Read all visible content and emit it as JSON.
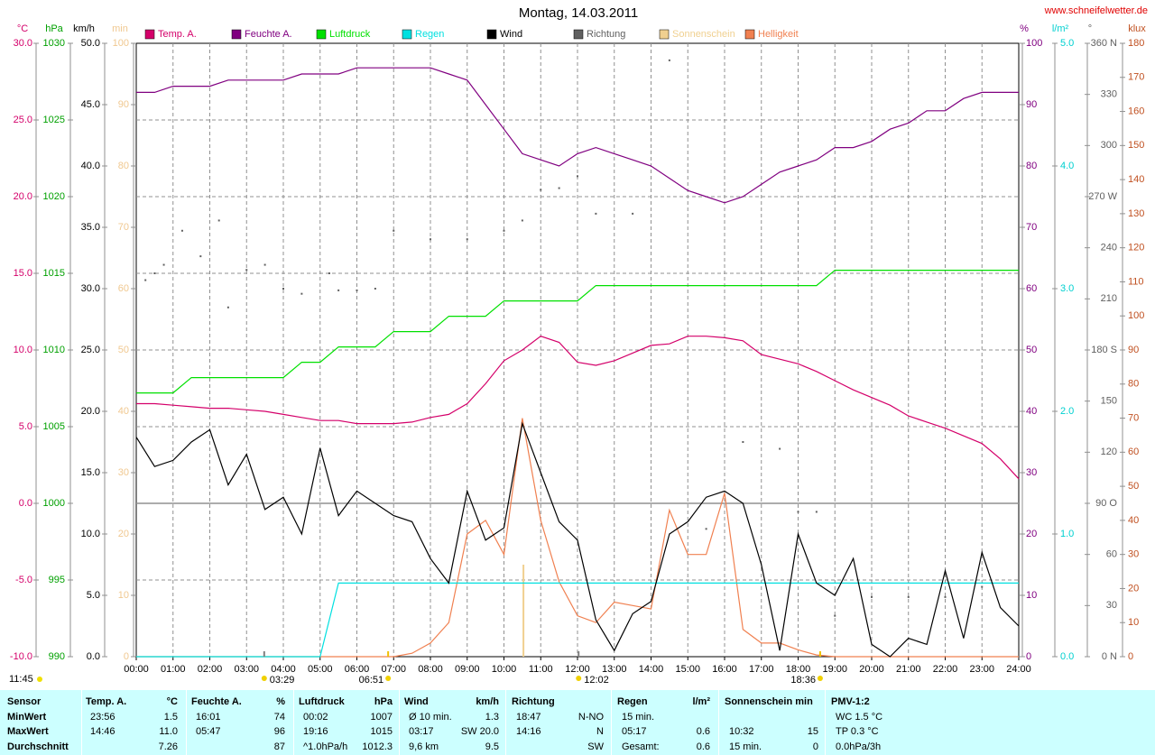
{
  "site": "www.schneifelwetter.de",
  "footer_time": "11:45",
  "chart_data": {
    "type": "line",
    "title": "Montag, 14.03.2011",
    "xlim": [
      0,
      24
    ],
    "xticks": [
      {
        "value": 0,
        "label": "00:00"
      },
      {
        "value": 1,
        "label": "01:00"
      },
      {
        "value": 2,
        "label": "02:00"
      },
      {
        "value": 3,
        "label": "03:00"
      },
      {
        "value": 4,
        "label": "04:00"
      },
      {
        "value": 5,
        "label": "05:00"
      },
      {
        "value": 6,
        "label": "06:00"
      },
      {
        "value": 7,
        "label": "07:00"
      },
      {
        "value": 8,
        "label": "08:00"
      },
      {
        "value": 9,
        "label": "09:00"
      },
      {
        "value": 10,
        "label": "10:00"
      },
      {
        "value": 11,
        "label": "11:00"
      },
      {
        "value": 12,
        "label": "12:00"
      },
      {
        "value": 13,
        "label": "13:00"
      },
      {
        "value": 14,
        "label": "14:00"
      },
      {
        "value": 15,
        "label": "15:00"
      },
      {
        "value": 16,
        "label": "16:00"
      },
      {
        "value": 17,
        "label": "17:00"
      },
      {
        "value": 18,
        "label": "18:00"
      },
      {
        "value": 19,
        "label": "19:00"
      },
      {
        "value": 20,
        "label": "20:00"
      },
      {
        "value": 21,
        "label": "21:00"
      },
      {
        "value": 22,
        "label": "22:00"
      },
      {
        "value": 23,
        "label": "23:00"
      },
      {
        "value": 24,
        "label": "24:00"
      }
    ],
    "grid": true,
    "axes": [
      {
        "unit": "°C",
        "color": "#d4006a",
        "lim": [
          -10,
          30
        ],
        "ticks": [
          {
            "value": -10,
            "label": "-10.0"
          },
          {
            "value": -5,
            "label": "-5.0"
          },
          {
            "value": 0,
            "label": "0.0"
          },
          {
            "value": 5,
            "label": "5.0"
          },
          {
            "value": 10,
            "label": "10.0"
          },
          {
            "value": 15,
            "label": "15.0"
          },
          {
            "value": 20,
            "label": "20.0"
          },
          {
            "value": 25,
            "label": "25.0"
          },
          {
            "value": 30,
            "label": "30.0"
          }
        ]
      },
      {
        "unit": "hPa",
        "color": "#00a000",
        "lim": [
          990,
          1030
        ],
        "ticks": [
          990,
          995,
          1000,
          1005,
          1010,
          1015,
          1020,
          1025,
          1030
        ]
      },
      {
        "unit": "km/h",
        "color": "#000000",
        "lim": [
          0,
          50
        ],
        "ticks": [
          {
            "value": 0,
            "label": "0.0"
          },
          {
            "value": 5,
            "label": "5.0"
          },
          {
            "value": 10,
            "label": "10.0"
          },
          {
            "value": 15,
            "label": "15.0"
          },
          {
            "value": 20,
            "label": "20.0"
          },
          {
            "value": 25,
            "label": "25.0"
          },
          {
            "value": 30,
            "label": "30.0"
          },
          {
            "value": 35,
            "label": "35.0"
          },
          {
            "value": 40,
            "label": "40.0"
          },
          {
            "value": 45,
            "label": "45.0"
          },
          {
            "value": 50,
            "label": "50.0"
          }
        ]
      },
      {
        "unit": "min",
        "color": "#f0c890",
        "lim": [
          0,
          100
        ],
        "ticks": [
          0,
          10,
          20,
          30,
          40,
          50,
          60,
          70,
          80,
          90,
          100
        ]
      },
      {
        "unit": "%",
        "color": "#800080",
        "lim": [
          0,
          100
        ],
        "ticks": [
          0,
          10,
          20,
          30,
          40,
          50,
          60,
          70,
          80,
          90,
          100
        ]
      },
      {
        "unit": "l/m²",
        "color": "#00d0d0",
        "lim": [
          0,
          5
        ],
        "ticks": [
          {
            "value": 0,
            "label": "0.0"
          },
          {
            "value": 1,
            "label": "1.0"
          },
          {
            "value": 2,
            "label": "2.0"
          },
          {
            "value": 3,
            "label": "3.0"
          },
          {
            "value": 4,
            "label": "4.0"
          },
          {
            "value": 5,
            "label": "5.0"
          }
        ]
      },
      {
        "unit": "°",
        "color": "#606060",
        "lim": [
          0,
          360
        ],
        "ticks": [
          {
            "value": 0,
            "label": "0 N"
          },
          30,
          60,
          {
            "value": 90,
            "label": "90 O"
          },
          120,
          150,
          {
            "value": 180,
            "label": "180 S"
          },
          210,
          240,
          {
            "value": 270,
            "label": "270 W"
          },
          300,
          330,
          {
            "value": 360,
            "label": "360 N"
          }
        ]
      },
      {
        "unit": "klux",
        "color": "#c05020",
        "lim": [
          0,
          180
        ],
        "ticks": [
          0,
          10,
          20,
          30,
          40,
          50,
          60,
          70,
          80,
          90,
          100,
          110,
          120,
          130,
          140,
          150,
          160,
          170,
          180
        ]
      }
    ],
    "x": [
      0,
      0.5,
      1,
      1.5,
      2,
      2.5,
      3,
      3.5,
      4,
      4.5,
      5,
      5.5,
      6,
      6.5,
      7,
      7.5,
      8,
      8.5,
      9,
      9.5,
      10,
      10.5,
      11,
      11.5,
      12,
      12.5,
      13,
      13.5,
      14,
      14.5,
      15,
      15.5,
      16,
      16.5,
      17,
      17.5,
      18,
      18.5,
      19,
      19.5,
      20,
      20.5,
      21,
      21.5,
      22,
      22.5,
      23,
      23.5,
      24
    ],
    "series": [
      {
        "name": "Temp. A.",
        "color": "#d4006a",
        "axis": 0,
        "mark": "line",
        "values": [
          6.5,
          6.5,
          6.4,
          6.3,
          6.2,
          6.2,
          6.1,
          6.0,
          5.8,
          5.6,
          5.4,
          5.4,
          5.2,
          5.2,
          5.2,
          5.3,
          5.6,
          5.8,
          6.5,
          7.8,
          9.3,
          10.0,
          10.9,
          10.5,
          9.2,
          9.0,
          9.3,
          9.8,
          10.3,
          10.4,
          10.9,
          10.9,
          10.8,
          10.6,
          9.7,
          9.4,
          9.1,
          8.6,
          8.0,
          7.4,
          6.9,
          6.4,
          5.7,
          5.3,
          4.9,
          4.4,
          3.9,
          2.9,
          1.6
        ]
      },
      {
        "name": "Feuchte A.",
        "color": "#800080",
        "axis": 4,
        "mark": "line",
        "values": [
          92,
          92,
          93,
          93,
          93,
          94,
          94,
          94,
          94,
          95,
          95,
          95,
          96,
          96,
          96,
          96,
          96,
          95,
          94,
          90,
          86,
          82,
          81,
          80,
          82,
          83,
          82,
          81,
          80,
          78,
          76,
          75,
          74,
          75,
          77,
          79,
          80,
          81,
          83,
          83,
          84,
          86,
          87,
          89,
          89,
          91,
          92,
          92,
          92
        ]
      },
      {
        "name": "Luftdruck",
        "color": "#00e000",
        "axis": 1,
        "mark": "line",
        "values": [
          1007.2,
          1007.2,
          1007.2,
          1008.2,
          1008.2,
          1008.2,
          1008.2,
          1008.2,
          1008.2,
          1009.2,
          1009.2,
          1010.2,
          1010.2,
          1010.2,
          1011.2,
          1011.2,
          1011.2,
          1012.2,
          1012.2,
          1012.2,
          1013.2,
          1013.2,
          1013.2,
          1013.2,
          1013.2,
          1014.2,
          1014.2,
          1014.2,
          1014.2,
          1014.2,
          1014.2,
          1014.2,
          1014.2,
          1014.2,
          1014.2,
          1014.2,
          1014.2,
          1014.2,
          1015.2,
          1015.2,
          1015.2,
          1015.2,
          1015.2,
          1015.2,
          1015.2,
          1015.2,
          1015.2,
          1015.2,
          1015.2
        ]
      },
      {
        "name": "Regen",
        "color": "#00e0e0",
        "axis": 5,
        "mark": "line",
        "values": [
          0,
          0,
          0,
          0,
          0,
          0,
          0,
          0,
          0,
          0,
          0,
          0.6,
          0.6,
          0.6,
          0.6,
          0.6,
          0.6,
          0.6,
          0.6,
          0.6,
          0.6,
          0.6,
          0.6,
          0.6,
          0.6,
          0.6,
          0.6,
          0.6,
          0.6,
          0.6,
          0.6,
          0.6,
          0.6,
          0.6,
          0.6,
          0.6,
          0.6,
          0.6,
          0.6,
          0.6,
          0.6,
          0.6,
          0.6,
          0.6,
          0.6,
          0.6,
          0.6,
          0.6,
          0.6
        ]
      },
      {
        "name": "Wind",
        "color": "#000000",
        "axis": 2,
        "mark": "line",
        "values": [
          17.9,
          15.5,
          16.0,
          17.5,
          18.5,
          14.0,
          16.5,
          12.0,
          13.0,
          10.0,
          17.0,
          11.5,
          13.5,
          12.5,
          11.5,
          11.0,
          8.0,
          6.0,
          13.5,
          9.5,
          10.5,
          19.0,
          15.0,
          11.0,
          9.5,
          3.0,
          0.5,
          3.5,
          4.5,
          10.0,
          11.0,
          13.0,
          13.5,
          12.5,
          7.5,
          0.5,
          10.0,
          6.0,
          5.0,
          8.0,
          1.0,
          0.0,
          1.5,
          1.0,
          7.0,
          1.5,
          8.5,
          4.0,
          2.5
        ]
      },
      {
        "name": "Richtung",
        "color": "#606060",
        "axis": 6,
        "mark": "dot",
        "x": [
          0.25,
          0.5,
          0.75,
          1.25,
          1.75,
          2.25,
          2.5,
          3,
          3.5,
          4,
          4.5,
          5.25,
          5.5,
          6,
          6.5,
          7,
          8,
          9,
          10,
          10.5,
          11,
          11.5,
          12,
          12.5,
          13.5,
          14.5,
          15.5,
          16.5,
          17.5,
          18,
          18.5,
          19,
          20,
          21,
          22,
          23
        ],
        "values": [
          221,
          225,
          230,
          250,
          235,
          256,
          205,
          227,
          230,
          216,
          213,
          225,
          215,
          215,
          216,
          250,
          245,
          245,
          250,
          256,
          274,
          275,
          282,
          260,
          260,
          350,
          75,
          126,
          122,
          85,
          85,
          24,
          35,
          35,
          35,
          41
        ]
      },
      {
        "name": "Sonnenschein",
        "color": "#f0d090",
        "axis": 3,
        "mark": "bar",
        "x": [
          10.53
        ],
        "values": [
          15
        ]
      },
      {
        "name": "Helligkeit",
        "color": "#f08050",
        "axis": 7,
        "mark": "line",
        "values": [
          0,
          0,
          0,
          0,
          0,
          0,
          0,
          0,
          0,
          0,
          0,
          0,
          0,
          0,
          0,
          1,
          4,
          10,
          36,
          40,
          30,
          70,
          40,
          22,
          12,
          10,
          16,
          15,
          14,
          43,
          30,
          30,
          48,
          8,
          4,
          4,
          2,
          0.5,
          0,
          0,
          0,
          0,
          0,
          0,
          0,
          0,
          0,
          0,
          0
        ]
      }
    ],
    "annotations": [
      {
        "x": 3.48,
        "label": "03:29"
      },
      {
        "x": 6.85,
        "label": "06:51"
      },
      {
        "x": 12.03,
        "label": "12:02"
      },
      {
        "x": 18.6,
        "label": "18:36"
      }
    ]
  },
  "summary": {
    "rows": [
      [
        "Sensor",
        "Temp. A.",
        "°C",
        "Feuchte A.",
        "%",
        "Luftdruck",
        "hPa",
        "Wind",
        "km/h",
        "Richtung",
        null,
        "Regen",
        "l/m²",
        "Sonnenschein min",
        null,
        "PMV-1:2",
        null
      ],
      [
        "MinWert",
        "23:56",
        "1.5",
        "16:01",
        "74",
        "00:02",
        "1007",
        "Ø 10 min.",
        "1.3",
        "18:47",
        "N-NO",
        "15 min.",
        null,
        null,
        null,
        "WC 1.5 °C",
        null
      ],
      [
        "MaxWert",
        "14:46",
        "11.0",
        "05:47",
        "96",
        "19:16",
        "1015",
        "03:17",
        "SW 20.0",
        "14:16",
        "N",
        "05:17",
        "0.6",
        "10:32",
        "15",
        "TP 0.3 °C",
        null
      ],
      [
        "Durchschnitt",
        null,
        "7.26",
        null,
        "87",
        "^1.0hPa/h",
        "1012.3",
        "9,6 km",
        "9.5",
        null,
        "SW",
        "Gesamt:",
        "0.6",
        "15 min.",
        "0",
        "0.0hPa/3h",
        null
      ]
    ]
  }
}
